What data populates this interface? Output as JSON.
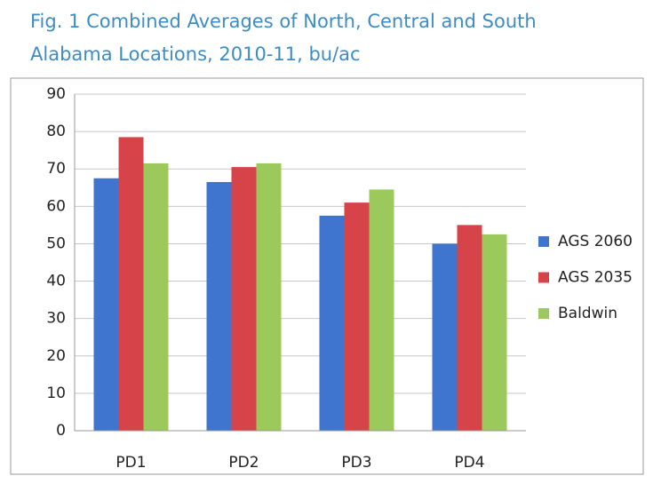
{
  "chart_data": {
    "type": "bar",
    "title": [
      "Fig. 1 Combined Averages of North, Central and South",
      "Alabama Locations, 2010-11, bu/ac"
    ],
    "categories": [
      "PD1",
      "PD2",
      "PD3",
      "PD4"
    ],
    "series": [
      {
        "name": "AGS 2060",
        "color": "#3f74cf",
        "values": [
          67.5,
          66.5,
          57.5,
          50
        ]
      },
      {
        "name": "AGS 2035",
        "color": "#d64449",
        "values": [
          78.5,
          70.5,
          61,
          55
        ]
      },
      {
        "name": "Baldwin",
        "color": "#9bc95c",
        "values": [
          71.5,
          71.5,
          64.5,
          52.5
        ]
      }
    ],
    "ylim": [
      0,
      90
    ],
    "yticks": [
      0,
      10,
      20,
      30,
      40,
      50,
      60,
      70,
      80,
      90
    ],
    "grid": true,
    "legend": "right"
  }
}
